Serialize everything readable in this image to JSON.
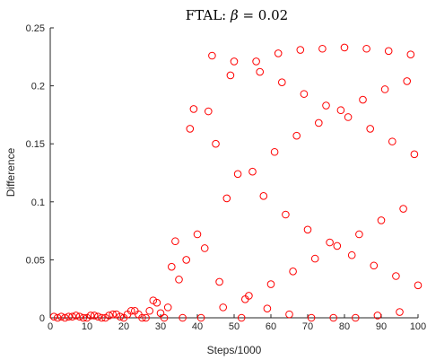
{
  "chart_data": {
    "type": "scatter",
    "title_prefix": "FTAL: ",
    "title_symbol": "β",
    "title_suffix": " = 0.02",
    "xlabel": "Steps/1000",
    "ylabel": "Difference",
    "xlim": [
      0,
      100
    ],
    "ylim": [
      0,
      0.25
    ],
    "xticks": [
      0,
      10,
      20,
      30,
      40,
      50,
      60,
      70,
      80,
      90,
      100
    ],
    "yticks": [
      0,
      0.05,
      0.1,
      0.15,
      0.2,
      0.25
    ],
    "ytick_labels": [
      "0",
      "0.05",
      "0.1",
      "0.15",
      "0.2",
      "0.25"
    ],
    "grid": false,
    "marker": "circle-open",
    "series": [
      {
        "color": "#ff0000",
        "points": [
          [
            1,
            0.001
          ],
          [
            2,
            0.0
          ],
          [
            3,
            0.001
          ],
          [
            4,
            0.0
          ],
          [
            5,
            0.001
          ],
          [
            6,
            0.001
          ],
          [
            7,
            0.002
          ],
          [
            8,
            0.001
          ],
          [
            9,
            0.0
          ],
          [
            10,
            0.0
          ],
          [
            11,
            0.002
          ],
          [
            12,
            0.002
          ],
          [
            13,
            0.001
          ],
          [
            14,
            0.0
          ],
          [
            15,
            0.0
          ],
          [
            16,
            0.002
          ],
          [
            17,
            0.003
          ],
          [
            18,
            0.003
          ],
          [
            19,
            0.001
          ],
          [
            20,
            0.0
          ],
          [
            21,
            0.003
          ],
          [
            22,
            0.006
          ],
          [
            23,
            0.006
          ],
          [
            24,
            0.003
          ],
          [
            25,
            0.0
          ],
          [
            26,
            0.0
          ],
          [
            27,
            0.006
          ],
          [
            28,
            0.015
          ],
          [
            29,
            0.013
          ],
          [
            30,
            0.004
          ],
          [
            31,
            0.0
          ],
          [
            32,
            0.009
          ],
          [
            33,
            0.044
          ],
          [
            34,
            0.066
          ],
          [
            35,
            0.033
          ],
          [
            36,
            0.0
          ],
          [
            37,
            0.05
          ],
          [
            38,
            0.163
          ],
          [
            39,
            0.18
          ],
          [
            40,
            0.072
          ],
          [
            41,
            0.0
          ],
          [
            42,
            0.06
          ],
          [
            43,
            0.178
          ],
          [
            44,
            0.226
          ],
          [
            45,
            0.15
          ],
          [
            46,
            0.031
          ],
          [
            47,
            0.009
          ],
          [
            48,
            0.103
          ],
          [
            49,
            0.209
          ],
          [
            50,
            0.221
          ],
          [
            51,
            0.124
          ],
          [
            52,
            0.0
          ],
          [
            53,
            0.016
          ],
          [
            54,
            0.019
          ],
          [
            55,
            0.126
          ],
          [
            56,
            0.221
          ],
          [
            57,
            0.212
          ],
          [
            58,
            0.105
          ],
          [
            59,
            0.008
          ],
          [
            60,
            0.029
          ],
          [
            61,
            0.143
          ],
          [
            62,
            0.228
          ],
          [
            63,
            0.203
          ],
          [
            64,
            0.089
          ],
          [
            65,
            0.003
          ],
          [
            66,
            0.04
          ],
          [
            67,
            0.157
          ],
          [
            68,
            0.231
          ],
          [
            69,
            0.193
          ],
          [
            70,
            0.076
          ],
          [
            71,
            0.0
          ],
          [
            72,
            0.051
          ],
          [
            73,
            0.168
          ],
          [
            74,
            0.232
          ],
          [
            75,
            0.183
          ],
          [
            76,
            0.065
          ],
          [
            77,
            0.0
          ],
          [
            78,
            0.062
          ],
          [
            79,
            0.179
          ],
          [
            80,
            0.233
          ],
          [
            81,
            0.173
          ],
          [
            82,
            0.054
          ],
          [
            83,
            0.0
          ],
          [
            84,
            0.072
          ],
          [
            85,
            0.188
          ],
          [
            86,
            0.232
          ],
          [
            87,
            0.163
          ],
          [
            88,
            0.045
          ],
          [
            89,
            0.002
          ],
          [
            90,
            0.084
          ],
          [
            91,
            0.197
          ],
          [
            92,
            0.23
          ],
          [
            93,
            0.152
          ],
          [
            94,
            0.036
          ],
          [
            95,
            0.005
          ],
          [
            96,
            0.094
          ],
          [
            97,
            0.204
          ],
          [
            98,
            0.227
          ],
          [
            99,
            0.141
          ],
          [
            100,
            0.028
          ]
        ]
      }
    ]
  }
}
